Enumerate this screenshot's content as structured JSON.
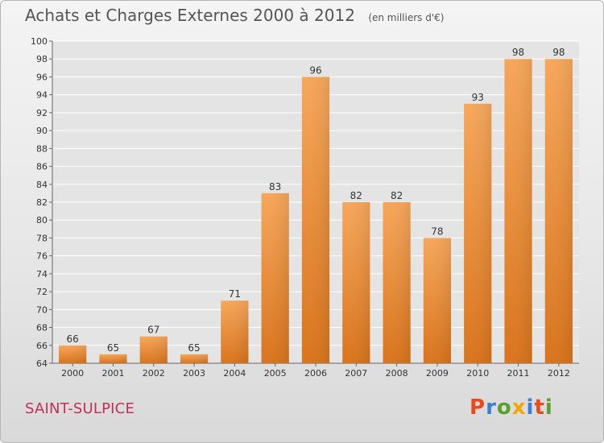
{
  "header": {
    "title": "Achats et Charges Externes 2000 à 2012",
    "subtitle": "(en milliers d'€)"
  },
  "footer": {
    "place": "SAINT-SULPICE",
    "logo_text": "Proxiti",
    "logo_colors": [
      "#e8491d",
      "#3a7fd0",
      "#5aa02c",
      "#f0a800",
      "#3a7fd0",
      "#e8491d",
      "#5aa02c"
    ]
  },
  "colors": {
    "bar_light": "#f7a75a",
    "bar_dark": "#d9741c",
    "grid": "#ffffff",
    "plot_bg": "#e4e4e4"
  },
  "chart_data": {
    "type": "bar",
    "categories": [
      "2000",
      "2001",
      "2002",
      "2003",
      "2004",
      "2005",
      "2006",
      "2007",
      "2008",
      "2009",
      "2010",
      "2011",
      "2012"
    ],
    "values": [
      66,
      65,
      67,
      65,
      71,
      83,
      96,
      82,
      82,
      78,
      93,
      98,
      98
    ],
    "yticks": [
      64,
      66,
      68,
      70,
      72,
      74,
      76,
      78,
      80,
      82,
      84,
      86,
      88,
      90,
      92,
      94,
      96,
      98,
      100
    ],
    "ylim": [
      64,
      100
    ],
    "grid": true,
    "xlabel": "",
    "ylabel": ""
  }
}
